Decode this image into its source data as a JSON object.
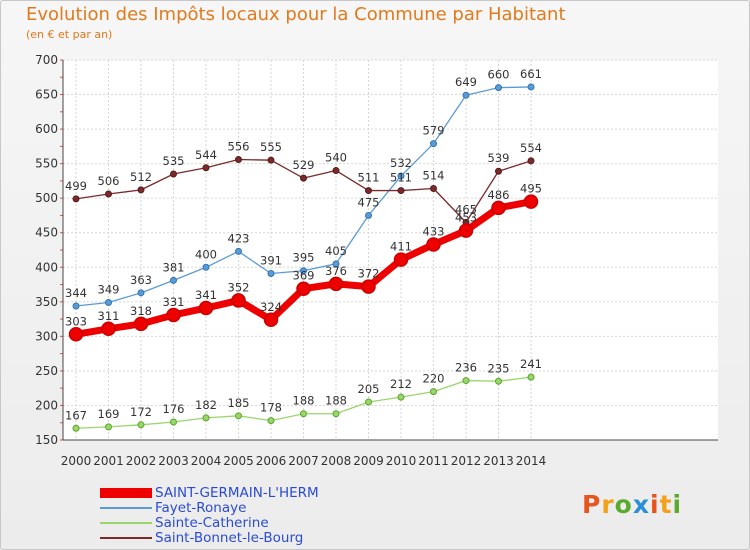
{
  "title": "Evolution des Impôts locaux pour la Commune par Habitant",
  "subtitle": "(en € et par an)",
  "logo": {
    "text": "Proxiti",
    "letters": [
      "P",
      "r",
      "o",
      "x",
      "i",
      "t",
      "i"
    ],
    "colors": [
      "#e8541e",
      "#f3a01a",
      "#5aaa2e",
      "#2a8fd6",
      "#e8541e",
      "#f3a01a",
      "#5aaa2e"
    ]
  },
  "chart_data": {
    "type": "line",
    "title": "Evolution des Impôts locaux pour la Commune par Habitant",
    "subtitle": "(en € et par an)",
    "xlabel": "",
    "ylabel": "",
    "x": [
      "2000",
      "2001",
      "2002",
      "2003",
      "2004",
      "2005",
      "2006",
      "2007",
      "2008",
      "2009",
      "2010",
      "2011",
      "2012",
      "2013",
      "2014"
    ],
    "ylim": [
      150,
      700
    ],
    "yticks": [
      150,
      200,
      250,
      300,
      350,
      400,
      450,
      500,
      550,
      600,
      650,
      700
    ],
    "grid": true,
    "legend_position": "bottom-left",
    "series": [
      {
        "name": "SAINT-GERMAIN-L'HERM",
        "color": "#ee0000",
        "emphasis": true,
        "values": [
          303,
          311,
          318,
          331,
          341,
          352,
          324,
          369,
          376,
          372,
          411,
          433,
          453,
          486,
          495
        ]
      },
      {
        "name": "Fayet-Ronaye",
        "color": "#5b9bd5",
        "values": [
          344,
          349,
          363,
          381,
          400,
          423,
          391,
          395,
          405,
          475,
          532,
          579,
          649,
          660,
          661
        ]
      },
      {
        "name": "Sainte-Catherine",
        "color": "#99d66b",
        "values": [
          167,
          169,
          172,
          176,
          182,
          185,
          178,
          188,
          188,
          205,
          212,
          220,
          236,
          235,
          241
        ]
      },
      {
        "name": "Saint-Bonnet-le-Bourg",
        "color": "#7a2a2a",
        "values": [
          499,
          506,
          512,
          535,
          544,
          556,
          555,
          529,
          540,
          511,
          511,
          514,
          465,
          539,
          554
        ]
      }
    ]
  }
}
